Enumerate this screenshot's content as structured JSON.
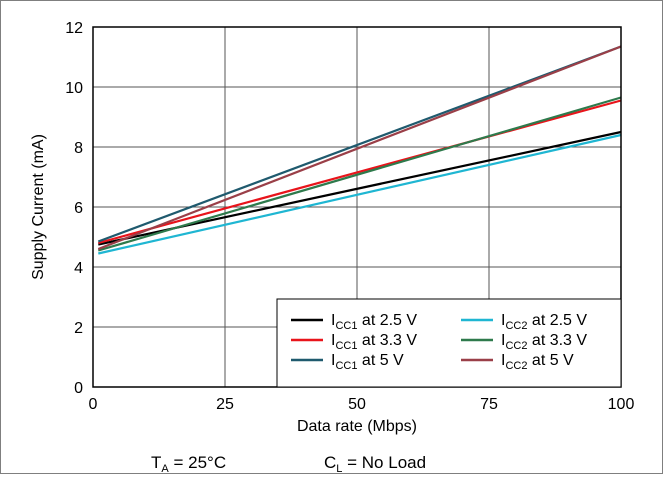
{
  "chart_data": {
    "type": "line",
    "xlabel": "Data rate (Mbps)",
    "ylabel": "Supply Current (mA)",
    "xlim": [
      0,
      100
    ],
    "ylim": [
      0,
      12
    ],
    "x_ticks": [
      "0",
      "25",
      "50",
      "75",
      "100"
    ],
    "y_ticks": [
      "0",
      "2",
      "4",
      "6",
      "8",
      "10",
      "12"
    ],
    "grid": true,
    "legend_position": "bottom-right",
    "series": [
      {
        "name_main": "I",
        "name_sub": "CC1",
        "name_rest": " at 2.5 V",
        "color": "#000000",
        "x": [
          1,
          100
        ],
        "y": [
          4.75,
          8.5
        ]
      },
      {
        "name_main": "I",
        "name_sub": "CC1",
        "name_rest": " at 3.3 V",
        "color": "#e8141b",
        "x": [
          1,
          100
        ],
        "y": [
          4.8,
          9.55
        ]
      },
      {
        "name_main": "I",
        "name_sub": "CC1",
        "name_rest": " at 5 V",
        "color": "#1f5a6e",
        "x": [
          1,
          100
        ],
        "y": [
          4.85,
          11.35
        ]
      },
      {
        "name_main": "I",
        "name_sub": "CC2",
        "name_rest": " at 2.5 V",
        "color": "#1fb6d2",
        "x": [
          1,
          100
        ],
        "y": [
          4.45,
          8.4
        ]
      },
      {
        "name_main": "I",
        "name_sub": "CC2",
        "name_rest": " at 3.3 V",
        "color": "#2e7a4c",
        "x": [
          1,
          100
        ],
        "y": [
          4.55,
          9.65
        ]
      },
      {
        "name_main": "I",
        "name_sub": "CC2",
        "name_rest": " at 5 V",
        "color": "#9a3f48",
        "x": [
          1,
          100
        ],
        "y": [
          4.6,
          11.35
        ]
      }
    ]
  },
  "footer": {
    "ta_main": "T",
    "ta_sub": "A",
    "ta_rest": " = 25°C",
    "cl_main": "C",
    "cl_sub": "L",
    "cl_rest": " = No Load"
  }
}
